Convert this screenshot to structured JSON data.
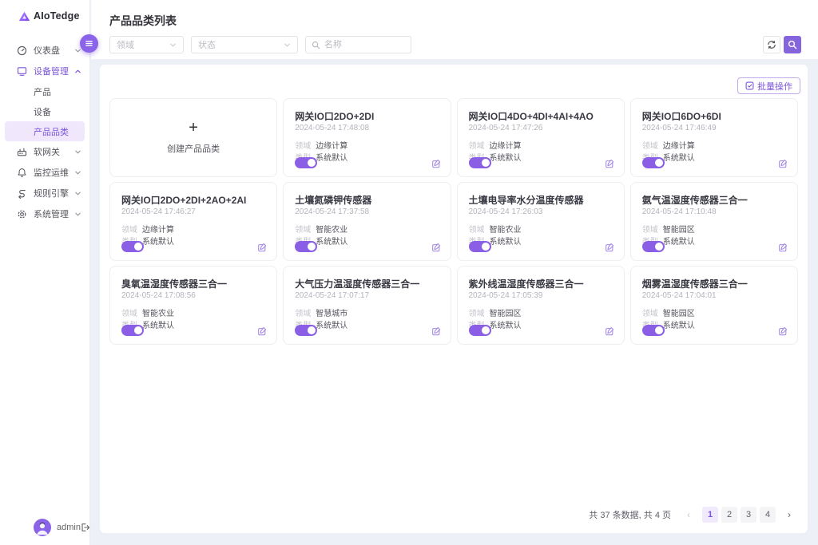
{
  "app": {
    "logo_text": "AIoTedge"
  },
  "sidebar": {
    "menu": [
      {
        "key": "dashboard",
        "label": "仪表盘",
        "icon": "gauge-icon",
        "state": "collapsed"
      },
      {
        "key": "device-management",
        "label": "设备管理",
        "icon": "devices-icon",
        "state": "expanded",
        "active": true,
        "children": [
          {
            "key": "product",
            "label": "产品"
          },
          {
            "key": "device",
            "label": "设备"
          },
          {
            "key": "product-category",
            "label": "产品品类",
            "selected": true
          }
        ]
      },
      {
        "key": "soft-gateway",
        "label": "软网关",
        "icon": "gateway-icon",
        "state": "collapsed"
      },
      {
        "key": "monitor-ops",
        "label": "监控运维",
        "icon": "bell-icon",
        "state": "collapsed"
      },
      {
        "key": "rule-engine",
        "label": "规则引擎",
        "icon": "workflow-icon",
        "state": "collapsed"
      },
      {
        "key": "system-management",
        "label": "系统管理",
        "icon": "gear-icon",
        "state": "collapsed"
      }
    ],
    "user": {
      "name": "admin"
    }
  },
  "header": {
    "title": "产品品类列表",
    "filters": {
      "domain_placeholder": "领域",
      "status_placeholder": "状态",
      "name_placeholder": "名称"
    }
  },
  "toolbar": {
    "batch_label": "批量操作"
  },
  "cards": {
    "create_label": "创建产品品类",
    "field_labels": {
      "domain": "领域",
      "type": "类型"
    },
    "items": [
      {
        "name": "网关IO口2DO+2DI",
        "created_at": "2024-05-24 17:48:08",
        "domain": "边缘计算",
        "type": "系统默认",
        "enabled": true
      },
      {
        "name": "网关IO口4DO+4DI+4AI+4AO",
        "created_at": "2024-05-24 17:47:26",
        "domain": "边缘计算",
        "type": "系统默认",
        "enabled": true
      },
      {
        "name": "网关IO口6DO+6DI",
        "created_at": "2024-05-24 17:46:49",
        "domain": "边缘计算",
        "type": "系统默认",
        "enabled": true
      },
      {
        "name": "网关IO口2DO+2DI+2AO+2AI",
        "created_at": "2024-05-24 17:46:27",
        "domain": "边缘计算",
        "type": "系统默认",
        "enabled": true
      },
      {
        "name": "土壤氮磷钾传感器",
        "created_at": "2024-05-24 17:37:58",
        "domain": "智能农业",
        "type": "系统默认",
        "enabled": true
      },
      {
        "name": "土壤电导率水分温度传感器",
        "created_at": "2024-05-24 17:26:03",
        "domain": "智能农业",
        "type": "系统默认",
        "enabled": true
      },
      {
        "name": "氨气温湿度传感器三合一",
        "created_at": "2024-05-24 17:10:48",
        "domain": "智能园区",
        "type": "系统默认",
        "enabled": true
      },
      {
        "name": "臭氧温湿度传感器三合一",
        "created_at": "2024-05-24 17:08:56",
        "domain": "智能农业",
        "type": "系统默认",
        "enabled": true
      },
      {
        "name": "大气压力温湿度传感器三合一",
        "created_at": "2024-05-24 17:07:17",
        "domain": "智慧城市",
        "type": "系统默认",
        "enabled": true
      },
      {
        "name": "紫外线温湿度传感器三合一",
        "created_at": "2024-05-24 17:05:39",
        "domain": "智能园区",
        "type": "系统默认",
        "enabled": true
      },
      {
        "name": "烟雾温湿度传感器三合一",
        "created_at": "2024-05-24 17:04:01",
        "domain": "智能园区",
        "type": "系统默认",
        "enabled": true
      }
    ]
  },
  "pagination": {
    "summary": "共 37 条数据, 共 4 页",
    "pages": [
      "1",
      "2",
      "3",
      "4"
    ],
    "current": "1",
    "prev_label": "‹",
    "next_label": "›"
  },
  "colors": {
    "primary": "#7b55d8",
    "primary_light": "#f0e7fd",
    "toggle_on": "#8a5fe6"
  }
}
